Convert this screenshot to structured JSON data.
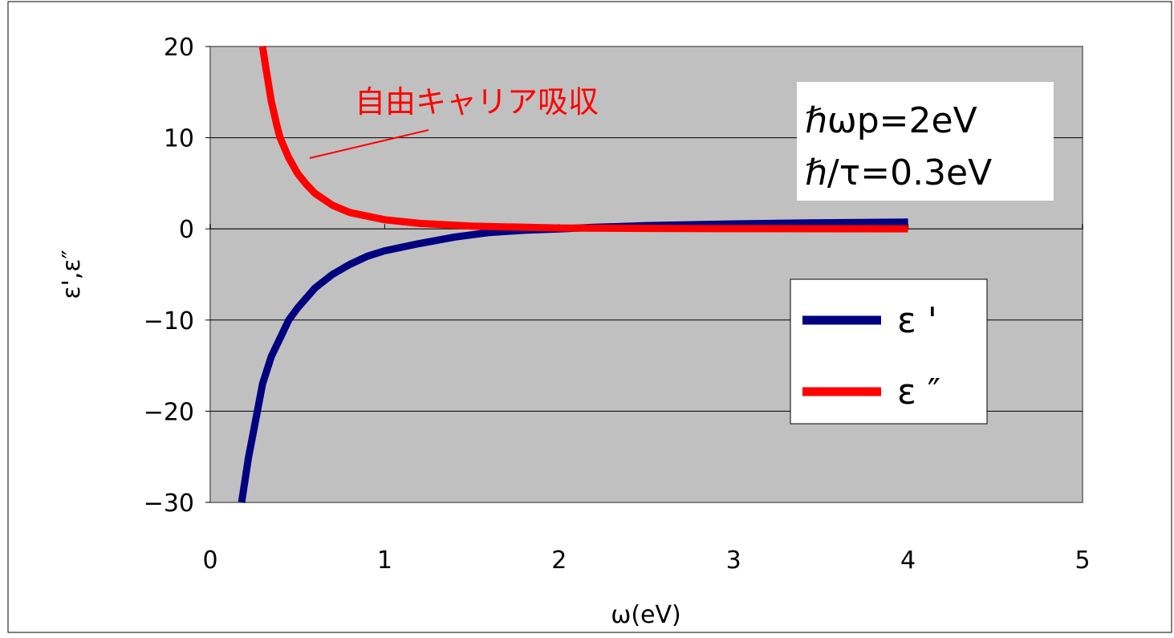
{
  "chart_data": {
    "type": "line",
    "xlabel": "ω(eV)",
    "ylabel": "ε',ε″",
    "xlim": [
      0,
      5
    ],
    "ylim": [
      -30,
      20
    ],
    "x_ticks": [
      "0",
      "1",
      "2",
      "3",
      "4",
      "5"
    ],
    "y_ticks": [
      "20",
      "10",
      "0",
      "−10",
      "−20",
      "−30"
    ],
    "grid": "horizontal",
    "plot_background": "#c0c0c0",
    "legend_placement": "right",
    "parameters": [
      "ℏωp=2eV",
      "ℏ/τ=0.3eV"
    ],
    "annotation": {
      "text": "自由キャリア吸収",
      "color": "#ff0000",
      "points_to_series": 1
    },
    "series": [
      {
        "name": "ε '",
        "color": "#000080",
        "x": [
          0.18,
          0.22,
          0.25,
          0.3,
          0.35,
          0.4,
          0.45,
          0.5,
          0.6,
          0.7,
          0.8,
          0.9,
          1.0,
          1.2,
          1.4,
          1.6,
          1.8,
          2.0,
          2.2,
          2.5,
          3.0,
          3.5,
          4.0
        ],
        "y": [
          -30,
          -25,
          -22,
          -17,
          -14,
          -12,
          -10,
          -8.7,
          -6.5,
          -5.0,
          -3.9,
          -3.0,
          -2.4,
          -1.6,
          -0.9,
          -0.4,
          -0.15,
          0.0,
          0.17,
          0.36,
          0.55,
          0.67,
          0.75
        ]
      },
      {
        "name": "ε ″",
        "color": "#ff0000",
        "x": [
          0.3,
          0.32,
          0.35,
          0.38,
          0.4,
          0.45,
          0.5,
          0.55,
          0.6,
          0.7,
          0.8,
          1.0,
          1.2,
          1.5,
          2.0,
          2.5,
          3.0,
          3.5,
          4.0
        ],
        "y": [
          20,
          17.5,
          14.0,
          11.5,
          10.0,
          7.8,
          6.1,
          4.9,
          3.9,
          2.6,
          1.8,
          1.0,
          0.6,
          0.3,
          0.1,
          0.05,
          0.03,
          0.02,
          0.01
        ]
      }
    ]
  }
}
